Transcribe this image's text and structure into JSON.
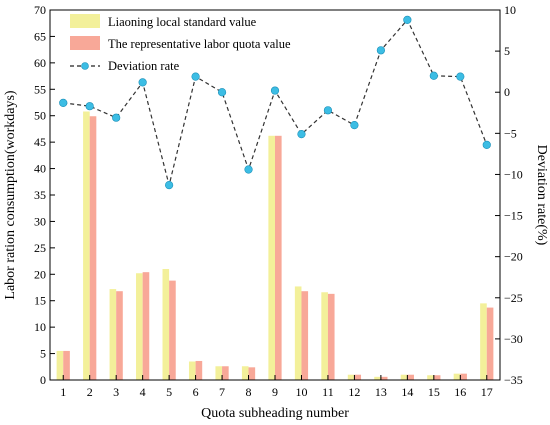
{
  "chart_data": {
    "type": "bar",
    "title": "",
    "xlabel": "Quota subheading number",
    "ylabel": "Labor ration consumption(workdays)",
    "y2label": "Deviation rate(%)",
    "categories": [
      "1",
      "2",
      "3",
      "4",
      "5",
      "6",
      "7",
      "8",
      "9",
      "10",
      "11",
      "12",
      "13",
      "14",
      "15",
      "16",
      "17"
    ],
    "ylim": [
      0,
      70
    ],
    "yticks": [
      0,
      5,
      10,
      15,
      20,
      25,
      30,
      35,
      40,
      45,
      50,
      55,
      60,
      65,
      70
    ],
    "y2lim": [
      -35,
      10
    ],
    "y2ticks": [
      -35,
      -30,
      -25,
      -20,
      -15,
      -10,
      -5,
      0,
      5,
      10
    ],
    "legend_position": "top-left",
    "grid": false,
    "series": [
      {
        "name": "Liaoning local standard value",
        "type": "bar",
        "axis": "left",
        "color": "#f3f09a",
        "values": [
          5.5,
          50.8,
          17.2,
          20.2,
          21.0,
          3.5,
          2.6,
          2.6,
          46.2,
          17.7,
          16.6,
          1.0,
          0.6,
          1.0,
          0.9,
          1.2,
          14.5
        ]
      },
      {
        "name": "The representative labor quota value",
        "type": "bar",
        "axis": "left",
        "color": "#f8a898",
        "values": [
          5.5,
          49.9,
          16.8,
          20.4,
          18.8,
          3.6,
          2.6,
          2.4,
          46.2,
          16.8,
          16.3,
          1.0,
          0.6,
          1.0,
          0.9,
          1.2,
          13.7
        ]
      },
      {
        "name": "Deviation rate",
        "type": "line",
        "axis": "right",
        "color": "#3cbde4",
        "values": [
          -1.3,
          -1.7,
          -3.1,
          1.2,
          -11.3,
          1.9,
          0.0,
          -9.4,
          0.2,
          -5.1,
          -2.2,
          -4.0,
          5.1,
          8.8,
          2.0,
          1.9,
          -6.4
        ]
      }
    ]
  }
}
